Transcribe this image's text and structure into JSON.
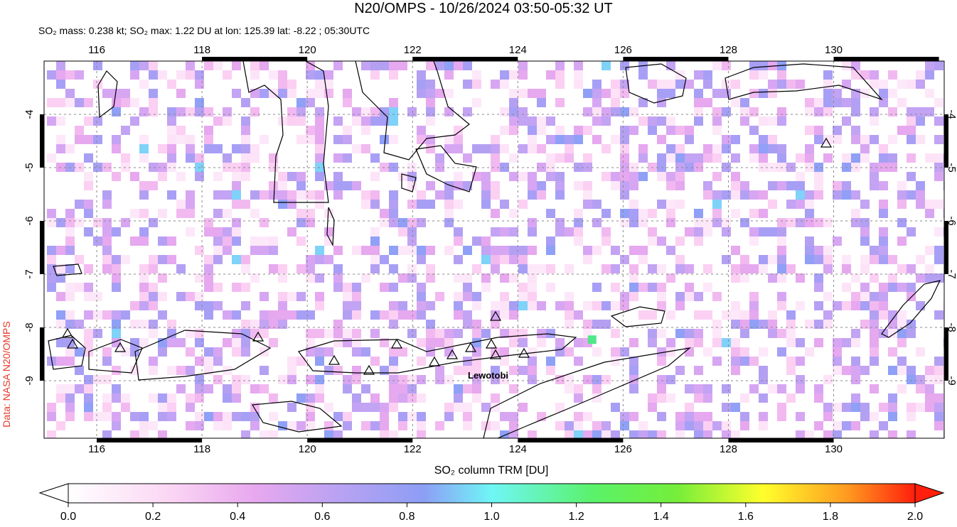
{
  "title": "N20/OMPS - 10/26/2024 03:50-05:32 UT",
  "subtitle": "SO₂ mass: 0.238 kt; SO₂ max: 1.22 DU at lon: 125.39 lat: -8.22 ; 05:30UTC",
  "credit": "Data: NASA N20/OMPS",
  "volcano_label": "Lewotobi",
  "map": {
    "xlim": [
      115,
      132.1
    ],
    "ylim": [
      -10.08,
      -3
    ],
    "lon_ticks": [
      116,
      118,
      120,
      122,
      124,
      126,
      128,
      130
    ],
    "lat_ticks": [
      -4,
      -5,
      -6,
      -7,
      -8,
      -9
    ]
  },
  "colorbar": {
    "label": "SO₂ column TRM [DU]",
    "lim": [
      0,
      2
    ],
    "ticks": [
      {
        "value": 0,
        "label": "0.0"
      },
      {
        "value": 0.2,
        "label": "0.2"
      },
      {
        "value": 0.4,
        "label": "0.4"
      },
      {
        "value": 0.6,
        "label": "0.6"
      },
      {
        "value": 0.8,
        "label": "0.8"
      },
      {
        "value": 1,
        "label": "1.0"
      },
      {
        "value": 1.2,
        "label": "1.2"
      },
      {
        "value": 1.4,
        "label": "1.4"
      },
      {
        "value": 1.6,
        "label": "1.6"
      },
      {
        "value": 1.8,
        "label": "1.8"
      },
      {
        "value": 2,
        "label": "2.0"
      }
    ]
  }
}
